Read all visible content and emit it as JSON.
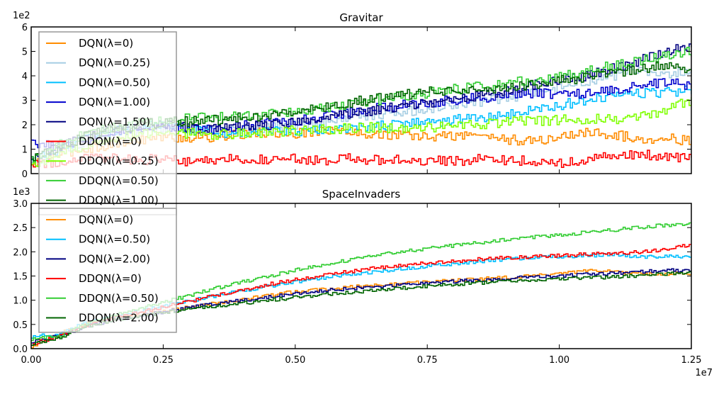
{
  "chart_data": [
    {
      "type": "line",
      "title": "Gravitar",
      "xlabel": "",
      "ylabel": "",
      "y_offset_label": "1e2",
      "xlim": [
        0,
        12500000
      ],
      "ylim": [
        0,
        600
      ],
      "x_ticks": [
        0,
        2500000,
        5000000,
        7500000,
        10000000,
        12500000
      ],
      "y_ticks": [
        0,
        100,
        200,
        300,
        400,
        500,
        600
      ],
      "y_tick_labels": [
        "0",
        "1",
        "2",
        "3",
        "4",
        "5",
        "6"
      ],
      "legend_position": "upper-left",
      "grid": false,
      "x": [
        0,
        500000,
        1000000,
        1500000,
        2000000,
        2500000,
        3000000,
        3500000,
        4000000,
        4500000,
        5000000,
        5500000,
        6000000,
        6500000,
        7000000,
        7500000,
        8000000,
        8500000,
        9000000,
        9500000,
        10000000,
        10500000,
        11000000,
        11500000,
        12000000,
        12500000
      ],
      "series": [
        {
          "name": "DQN(λ=0)",
          "color": "#ff8c00",
          "values": [
            30,
            80,
            100,
            120,
            140,
            150,
            145,
            150,
            160,
            170,
            165,
            180,
            170,
            160,
            155,
            150,
            155,
            160,
            140,
            130,
            150,
            170,
            160,
            140,
            150,
            130
          ]
        },
        {
          "name": "DQN(λ=0.25)",
          "color": "#a6cee3",
          "values": [
            40,
            90,
            130,
            160,
            180,
            190,
            180,
            175,
            180,
            190,
            200,
            210,
            230,
            240,
            250,
            265,
            280,
            295,
            310,
            330,
            350,
            380,
            400,
            420,
            410,
            420
          ]
        },
        {
          "name": "DQN(λ=0.50)",
          "color": "#00bfff",
          "values": [
            50,
            100,
            140,
            170,
            190,
            195,
            180,
            170,
            165,
            170,
            175,
            180,
            190,
            195,
            200,
            210,
            220,
            230,
            240,
            260,
            280,
            300,
            320,
            330,
            330,
            345
          ]
        },
        {
          "name": "DQN(λ=1.00)",
          "color": "#0000cd",
          "values": [
            130,
            110,
            140,
            170,
            185,
            190,
            185,
            180,
            195,
            205,
            215,
            230,
            250,
            270,
            280,
            290,
            300,
            310,
            320,
            330,
            320,
            330,
            340,
            360,
            370,
            360
          ]
        },
        {
          "name": "DQN(λ=1.50)",
          "color": "#000080",
          "values": [
            60,
            110,
            150,
            175,
            190,
            200,
            190,
            185,
            190,
            200,
            215,
            230,
            245,
            260,
            275,
            290,
            305,
            320,
            340,
            360,
            380,
            400,
            430,
            460,
            500,
            520
          ]
        },
        {
          "name": "DDQN(λ=0)",
          "color": "#ff0000",
          "values": [
            30,
            50,
            60,
            60,
            55,
            60,
            50,
            55,
            60,
            55,
            60,
            50,
            60,
            55,
            60,
            55,
            50,
            60,
            55,
            50,
            45,
            60,
            70,
            80,
            70,
            60
          ]
        },
        {
          "name": "DDQN(λ=0.25)",
          "color": "#7fff00",
          "values": [
            30,
            80,
            110,
            140,
            160,
            170,
            165,
            160,
            165,
            170,
            175,
            180,
            185,
            190,
            185,
            190,
            195,
            200,
            210,
            215,
            220,
            225,
            220,
            230,
            260,
            300
          ]
        },
        {
          "name": "DDQN(λ=0.50)",
          "color": "#32cd32",
          "values": [
            60,
            120,
            160,
            190,
            210,
            220,
            225,
            230,
            235,
            245,
            255,
            270,
            285,
            300,
            315,
            330,
            345,
            355,
            370,
            385,
            400,
            420,
            440,
            460,
            480,
            500
          ]
        },
        {
          "name": "DDQN(λ=1.00)",
          "color": "#006400",
          "values": [
            50,
            110,
            150,
            180,
            200,
            210,
            215,
            220,
            230,
            240,
            255,
            270,
            290,
            305,
            320,
            335,
            340,
            345,
            355,
            365,
            380,
            390,
            410,
            430,
            440,
            430
          ]
        }
      ]
    },
    {
      "type": "line",
      "title": "SpaceInvaders",
      "xlabel": "",
      "ylabel": "",
      "y_offset_label": "1e3",
      "x_offset_label": "1e7",
      "xlim": [
        0,
        12500000
      ],
      "ylim": [
        0,
        3000
      ],
      "x_ticks": [
        0,
        2500000,
        5000000,
        7500000,
        10000000,
        12500000
      ],
      "x_tick_labels": [
        "0.00",
        "0.25",
        "0.50",
        "0.75",
        "1.00",
        "1.25"
      ],
      "y_ticks": [
        0,
        500,
        1000,
        1500,
        2000,
        2500,
        3000
      ],
      "y_tick_labels": [
        "0.0",
        "0.5",
        "1.0",
        "1.5",
        "2.0",
        "2.5",
        "3.0"
      ],
      "legend_position": "upper-left",
      "grid": false,
      "x": [
        0,
        500000,
        1000000,
        1500000,
        2000000,
        2500000,
        3000000,
        3500000,
        4000000,
        4500000,
        5000000,
        5500000,
        6000000,
        6500000,
        7000000,
        7500000,
        8000000,
        8500000,
        9000000,
        9500000,
        10000000,
        10500000,
        11000000,
        11500000,
        12000000,
        12500000
      ],
      "series": [
        {
          "name": "DQN(λ=0)",
          "color": "#ff8c00",
          "values": [
            50,
            300,
            500,
            620,
            700,
            780,
            860,
            940,
            1020,
            1100,
            1180,
            1230,
            1270,
            1310,
            1340,
            1380,
            1410,
            1440,
            1470,
            1500,
            1550,
            1600,
            1600,
            1550,
            1550,
            1550
          ]
        },
        {
          "name": "DQN(λ=0.50)",
          "color": "#00bfff",
          "values": [
            250,
            300,
            520,
            650,
            760,
            880,
            990,
            1100,
            1200,
            1290,
            1380,
            1460,
            1530,
            1590,
            1650,
            1700,
            1750,
            1800,
            1850,
            1880,
            1900,
            1920,
            1950,
            1900,
            1900,
            1900
          ]
        },
        {
          "name": "DQN(λ=2.00)",
          "color": "#000080",
          "values": [
            150,
            250,
            450,
            580,
            670,
            760,
            850,
            930,
            1000,
            1070,
            1140,
            1190,
            1240,
            1280,
            1320,
            1360,
            1390,
            1420,
            1450,
            1480,
            1500,
            1530,
            1560,
            1580,
            1620,
            1600
          ]
        },
        {
          "name": "DDQN(λ=0)",
          "color": "#ff0000",
          "values": [
            100,
            250,
            480,
            620,
            740,
            860,
            980,
            1100,
            1220,
            1330,
            1430,
            1510,
            1590,
            1660,
            1720,
            1770,
            1800,
            1850,
            1880,
            1900,
            1920,
            1950,
            1970,
            2000,
            2050,
            2150
          ]
        },
        {
          "name": "DDQN(λ=0.50)",
          "color": "#32cd32",
          "values": [
            200,
            250,
            500,
            680,
            820,
            960,
            1100,
            1250,
            1380,
            1500,
            1620,
            1730,
            1830,
            1920,
            2000,
            2070,
            2130,
            2190,
            2250,
            2300,
            2350,
            2400,
            2450,
            2500,
            2550,
            2580
          ]
        },
        {
          "name": "DDQN(λ=2.00)",
          "color": "#006400",
          "values": [
            100,
            200,
            450,
            580,
            660,
            740,
            810,
            880,
            940,
            1000,
            1060,
            1110,
            1160,
            1210,
            1250,
            1290,
            1330,
            1360,
            1390,
            1420,
            1440,
            1460,
            1480,
            1510,
            1540,
            1560
          ]
        }
      ]
    }
  ]
}
